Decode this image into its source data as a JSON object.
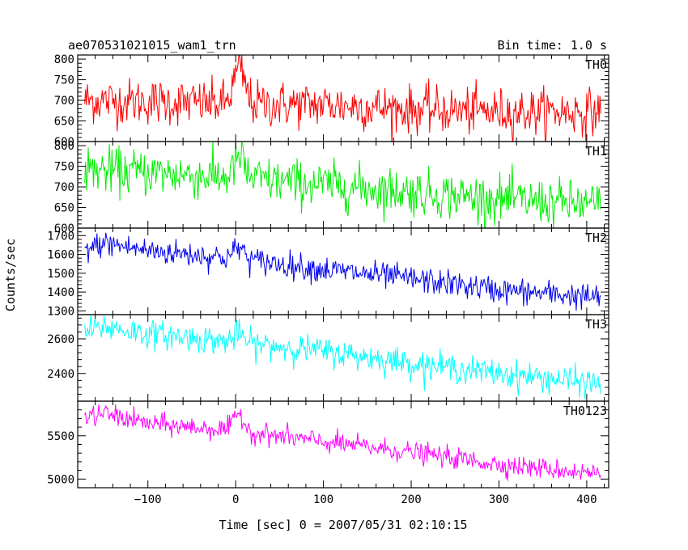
{
  "header": {
    "title": "ae070531021015_wam1_trn",
    "bin_time": "Bin time: 1.0 s"
  },
  "axes": {
    "xlabel": "Time [sec] 0 = 2007/05/31 02:10:15",
    "ylabel": "Counts/sec"
  },
  "chart_data": {
    "type": "line",
    "shared_x": true,
    "xlim": [
      -180,
      425
    ],
    "x_step": 1.0,
    "x_ticks": [
      -100,
      0,
      100,
      200,
      300,
      400
    ],
    "x_tick_labels": [
      "−100",
      "0",
      "100",
      "200",
      "300",
      "400"
    ],
    "panels": [
      {
        "name": "TH0",
        "color": "#ff0000",
        "ylim": [
          600,
          810
        ],
        "y_ticks": [
          600,
          650,
          700,
          750,
          800
        ],
        "y_tick_labels": [
          "600",
          "650",
          "700",
          "750",
          "800"
        ],
        "x_start": -172,
        "x_end": 416,
        "trend": [
          [
            -172,
            700
          ],
          [
            -60,
            695
          ],
          [
            0,
            690
          ],
          [
            100,
            690
          ],
          [
            200,
            678
          ],
          [
            300,
            672
          ],
          [
            416,
            672
          ]
        ],
        "flare": {
          "center": 4,
          "width": 9,
          "amp": 85
        },
        "noise_sd": 28
      },
      {
        "name": "TH1",
        "color": "#00ee00",
        "ylim": [
          600,
          810
        ],
        "y_ticks": [
          600,
          650,
          700,
          750,
          800
        ],
        "y_tick_labels": [
          "600",
          "650",
          "700",
          "750",
          "800"
        ],
        "x_start": -172,
        "x_end": 416,
        "trend": [
          [
            -172,
            742
          ],
          [
            -100,
            735
          ],
          [
            0,
            722
          ],
          [
            100,
            705
          ],
          [
            200,
            688
          ],
          [
            300,
            670
          ],
          [
            416,
            655
          ]
        ],
        "flare": {
          "center": 4,
          "width": 8,
          "amp": 50
        },
        "noise_sd": 28
      },
      {
        "name": "TH2",
        "color": "#0000ee",
        "ylim": [
          1280,
          1740
        ],
        "y_ticks": [
          1300,
          1400,
          1500,
          1600,
          1700
        ],
        "y_tick_labels": [
          "1300",
          "1400",
          "1500",
          "1600",
          "1700"
        ],
        "x_start": -172,
        "x_end": 416,
        "trend": [
          [
            -172,
            1620
          ],
          [
            -150,
            1660
          ],
          [
            -100,
            1620
          ],
          [
            0,
            1580
          ],
          [
            100,
            1520
          ],
          [
            200,
            1470
          ],
          [
            300,
            1410
          ],
          [
            416,
            1370
          ]
        ],
        "flare": {
          "center": 4,
          "width": 8,
          "amp": 60
        },
        "noise_sd": 35
      },
      {
        "name": "TH3",
        "color": "#00ffff",
        "ylim": [
          2240,
          2740
        ],
        "y_ticks": [
          2400,
          2600
        ],
        "y_tick_labels": [
          "2400",
          "2600"
        ],
        "x_start": -172,
        "x_end": 416,
        "trend": [
          [
            -172,
            2640
          ],
          [
            -150,
            2670
          ],
          [
            -100,
            2630
          ],
          [
            0,
            2580
          ],
          [
            100,
            2530
          ],
          [
            200,
            2460
          ],
          [
            300,
            2400
          ],
          [
            416,
            2340
          ]
        ],
        "flare": {
          "center": 4,
          "width": 8,
          "amp": 50
        },
        "noise_sd": 40
      },
      {
        "name": "TH0123",
        "color": "#ff00ff",
        "ylim": [
          4900,
          5900
        ],
        "y_ticks": [
          5000,
          5500
        ],
        "y_tick_labels": [
          "5000",
          "5500"
        ],
        "x_start": -172,
        "x_end": 416,
        "trend": [
          [
            -172,
            5700
          ],
          [
            -150,
            5760
          ],
          [
            -100,
            5640
          ],
          [
            0,
            5560
          ],
          [
            100,
            5430
          ],
          [
            200,
            5310
          ],
          [
            300,
            5170
          ],
          [
            416,
            5060
          ]
        ],
        "flare": {
          "center": 4,
          "width": 8,
          "amp": 200
        },
        "noise_sd": 60
      }
    ]
  }
}
